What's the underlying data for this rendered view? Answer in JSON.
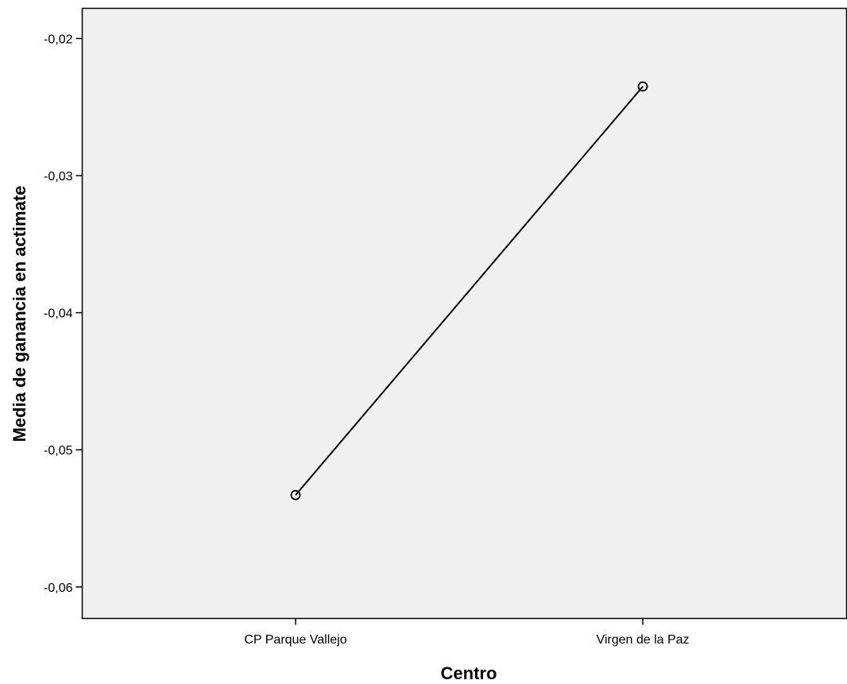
{
  "chart_data": {
    "type": "line",
    "categories": [
      "CP Parque Vallejo",
      "Virgen de la Paz"
    ],
    "series": [
      {
        "values": [
          -0.0533,
          -0.0235
        ]
      }
    ],
    "xlabel": "Centro",
    "ylabel": "Media de ganancia en actimate",
    "yticks": [
      "-0,02",
      "-0,03",
      "-0,04",
      "-0,05",
      "-0,06"
    ],
    "ytick_values": [
      -0.02,
      -0.03,
      -0.04,
      -0.05,
      -0.06
    ],
    "ylim": [
      -0.0623,
      -0.0178
    ],
    "grid": false,
    "marker": "open-circle",
    "colors": {
      "line": "#000000",
      "plot_background": "#f0f0f0",
      "page_background": "#ffffff"
    }
  }
}
